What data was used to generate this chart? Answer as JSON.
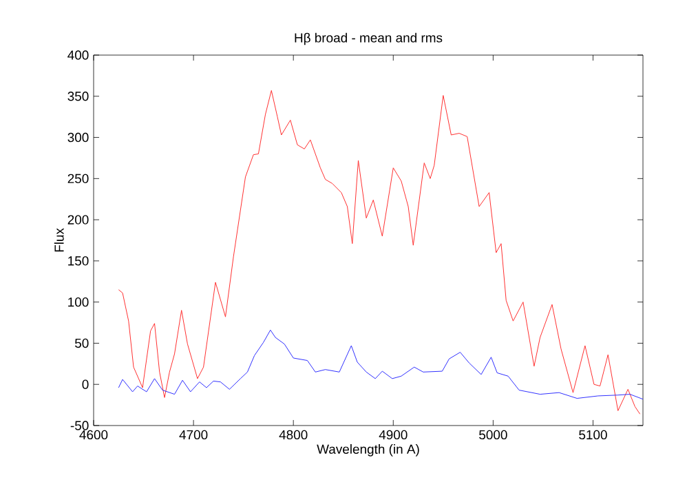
{
  "chart_data": {
    "type": "line",
    "title": "Hβ broad - mean and rms",
    "xlabel": "Wavelength (in A)",
    "ylabel": "Flux",
    "xlim": [
      4600,
      5150
    ],
    "ylim": [
      -50,
      400
    ],
    "xticks": [
      4600,
      4700,
      4800,
      4900,
      5000,
      5100
    ],
    "yticks": [
      -50,
      0,
      50,
      100,
      150,
      200,
      250,
      300,
      350,
      400
    ],
    "marker": "none",
    "line_style": "solid",
    "series": [
      {
        "color": "#ff3030",
        "x": [
          4625,
          4629,
          4635,
          4640,
          4649,
          4657,
          4661,
          4666,
          4671,
          4676,
          4681,
          4688,
          4694,
          4704,
          4710,
          4722,
          4732,
          4740,
          4752,
          4760,
          4765,
          4772,
          4778,
          4784,
          4788,
          4797,
          4804,
          4811,
          4817,
          4827,
          4832,
          4839,
          4848,
          4854,
          4859,
          4865,
          4873,
          4880,
          4889,
          4900,
          4908,
          4915,
          4920,
          4931,
          4937,
          4941,
          4950,
          4958,
          4966,
          4974,
          4986,
          4996,
          5003,
          5008,
          5013,
          5020,
          5030,
          5041,
          5047,
          5059,
          5068,
          5080,
          5092,
          5101,
          5107,
          5115,
          5125,
          5135,
          5142,
          5147
        ],
        "values": [
          115,
          111,
          77,
          21,
          -4,
          65,
          74,
          15,
          -16,
          15,
          37,
          90,
          49,
          7,
          21,
          124,
          82,
          155,
          252,
          279,
          280,
          328,
          357,
          325,
          303,
          321,
          291,
          286,
          297,
          263,
          249,
          244,
          233,
          216,
          171,
          272,
          202,
          224,
          180,
          263,
          247,
          216,
          169,
          269,
          250,
          266,
          351,
          303,
          305,
          301,
          216,
          233,
          160,
          171,
          102,
          77,
          100,
          22,
          57,
          97,
          43,
          -10,
          47,
          0,
          -2,
          36,
          -32,
          -6,
          -27,
          -36
        ]
      },
      {
        "color": "#3030ff",
        "x": [
          4625,
          4629,
          4639,
          4644,
          4653,
          4661,
          4669,
          4681,
          4689,
          4697,
          4706,
          4713,
          4720,
          4727,
          4736,
          4747,
          4754,
          4761,
          4770,
          4777,
          4782,
          4791,
          4800,
          4814,
          4822,
          4832,
          4846,
          4858,
          4864,
          4873,
          4882,
          4889,
          4899,
          4908,
          4921,
          4930,
          4949,
          4956,
          4967,
          4976,
          4988,
          4998,
          5004,
          5015,
          5026,
          5047,
          5066,
          5084,
          5105,
          5125,
          5137,
          5150
        ],
        "values": [
          -4,
          6,
          -9,
          -2,
          -9,
          7,
          -7,
          -12,
          5,
          -9,
          3,
          -4,
          4,
          3,
          -6,
          7,
          15,
          35,
          51,
          66,
          57,
          49,
          32,
          29,
          15,
          18,
          15,
          47,
          27,
          15,
          7,
          16,
          7,
          10,
          21,
          15,
          16,
          31,
          39,
          26,
          12,
          33,
          14,
          10,
          -7,
          -12,
          -10,
          -17,
          -14,
          -13,
          -12,
          -18
        ]
      }
    ]
  }
}
